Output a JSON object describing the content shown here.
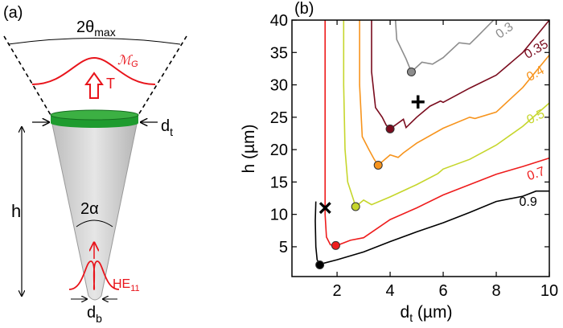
{
  "panel_a": {
    "label": "(a)",
    "theta_label": "2θ",
    "theta_sub": "max",
    "mode_label": "ℳ",
    "mode_sub": "G",
    "transmission_label": "T",
    "top_diameter_label": "d",
    "top_diameter_sub": "t",
    "height_label": "h",
    "angle_label": "2α",
    "fiber_mode_label": "HE",
    "fiber_mode_sub": "11",
    "bottom_diameter_label": "d",
    "bottom_diameter_sub": "b",
    "colors": {
      "tip": "#d4d4d4",
      "cap": "#1e9b2e",
      "mode": "#e8141b"
    }
  },
  "chart_data": {
    "type": "line",
    "panel_label": "(b)",
    "xlabel": "d",
    "xlabel_sub": "t",
    "xlabel_unit": " (µm)",
    "ylabel": "h (µm)",
    "xlim": [
      0.3,
      10
    ],
    "ylim": [
      0.4,
      40
    ],
    "xticks": [
      2,
      4,
      6,
      8,
      10
    ],
    "yticks": [
      5,
      10,
      15,
      20,
      25,
      30,
      35,
      40
    ],
    "grid": false,
    "series": [
      {
        "name": "0.9",
        "color": "#000000",
        "label_pos": [
          9.2,
          11.3
        ],
        "label_rot": 0,
        "points": [
          [
            1.2,
            12
          ],
          [
            1.18,
            9
          ],
          [
            1.2,
            5
          ],
          [
            1.25,
            3
          ],
          [
            1.35,
            2.3
          ],
          [
            2,
            3
          ],
          [
            3,
            4.2
          ],
          [
            4,
            5.8
          ],
          [
            5,
            7.3
          ],
          [
            6,
            8.7
          ],
          [
            7,
            10.3
          ],
          [
            8,
            12
          ],
          [
            9,
            12.8
          ],
          [
            9.5,
            13.6
          ],
          [
            10,
            13.6
          ]
        ],
        "optimum": [
          1.35,
          2.2
        ]
      },
      {
        "name": "0.7",
        "color": "#ee1c1c",
        "label_pos": [
          9.55,
          15.7
        ],
        "label_rot": -20,
        "points": [
          [
            1.55,
            40
          ],
          [
            1.55,
            20
          ],
          [
            1.55,
            10
          ],
          [
            1.6,
            6.5
          ],
          [
            1.75,
            5.3
          ],
          [
            2,
            5.2
          ],
          [
            2.5,
            6
          ],
          [
            3,
            6.4
          ],
          [
            4,
            9.2
          ],
          [
            5,
            11
          ],
          [
            6,
            13
          ],
          [
            7,
            14.6
          ],
          [
            8,
            16.2
          ],
          [
            9,
            17.4
          ],
          [
            10,
            18.7
          ]
        ],
        "optimum": [
          1.95,
          5.2
        ]
      },
      {
        "name": "0.5",
        "color": "#c6d62c",
        "label_pos": [
          9.55,
          24.5
        ],
        "label_rot": -25,
        "points": [
          [
            2.25,
            40
          ],
          [
            2.25,
            30
          ],
          [
            2.3,
            20
          ],
          [
            2.4,
            15
          ],
          [
            2.6,
            12.5
          ],
          [
            2.7,
            11.2
          ],
          [
            3,
            12.2
          ],
          [
            3.3,
            11.5
          ],
          [
            4,
            12.7
          ],
          [
            5,
            14.6
          ],
          [
            5.8,
            16.3
          ],
          [
            6,
            17
          ],
          [
            7,
            18.5
          ],
          [
            8,
            20.7
          ],
          [
            9,
            23.6
          ],
          [
            10,
            27.2
          ]
        ],
        "optimum": [
          2.7,
          11.2
        ]
      },
      {
        "name": "0.4",
        "color": "#f7941d",
        "label_pos": [
          9.55,
          31.2
        ],
        "label_rot": -30,
        "points": [
          [
            2.85,
            40
          ],
          [
            2.85,
            30
          ],
          [
            2.95,
            22
          ],
          [
            3.2,
            20
          ],
          [
            3.4,
            18.5
          ],
          [
            3.55,
            17.6
          ],
          [
            4,
            19.2
          ],
          [
            4.3,
            18.8
          ],
          [
            4.5,
            19.5
          ],
          [
            5,
            21
          ],
          [
            6,
            23.3
          ],
          [
            7,
            25
          ],
          [
            7.2,
            24.8
          ],
          [
            8,
            25.8
          ],
          [
            9,
            29.6
          ],
          [
            10,
            34.6
          ]
        ],
        "optimum": [
          3.55,
          17.6
        ]
      },
      {
        "name": "0.35",
        "color": "#7a0c1e",
        "label_pos": [
          9.4,
          36.2
        ],
        "label_rot": -30,
        "points": [
          [
            3.3,
            40
          ],
          [
            3.3,
            32
          ],
          [
            3.45,
            26.5
          ],
          [
            3.7,
            25
          ],
          [
            3.85,
            23.8
          ],
          [
            4,
            23.2
          ],
          [
            4.5,
            24.7
          ],
          [
            4.6,
            23.4
          ],
          [
            5,
            25
          ],
          [
            5.5,
            26.7
          ],
          [
            5.9,
            27.5
          ],
          [
            6,
            27.3
          ],
          [
            7,
            29.5
          ],
          [
            8,
            31.5
          ],
          [
            9,
            35
          ],
          [
            9.7,
            38.5
          ],
          [
            10,
            40
          ]
        ],
        "optimum": [
          4,
          23.2
        ]
      },
      {
        "name": "0.3",
        "color": "#8c8c8c",
        "label_pos": [
          8.7,
          37.4
        ],
        "label_rot": -35,
        "points": [
          [
            4.2,
            40
          ],
          [
            4.25,
            37
          ],
          [
            4.6,
            34
          ],
          [
            4.7,
            33
          ],
          [
            4.8,
            32
          ],
          [
            5.2,
            33.5
          ],
          [
            5.6,
            33.2
          ],
          [
            6,
            34.2
          ],
          [
            6.6,
            36.5
          ],
          [
            7,
            36.3
          ],
          [
            7.3,
            37.5
          ],
          [
            7.9,
            40
          ]
        ],
        "optimum": [
          4.8,
          32
        ]
      }
    ],
    "markers": [
      {
        "symbol": "×",
        "x": 1.55,
        "y": 10.9
      },
      {
        "symbol": "+",
        "x": 5.05,
        "y": 27.3
      }
    ]
  }
}
